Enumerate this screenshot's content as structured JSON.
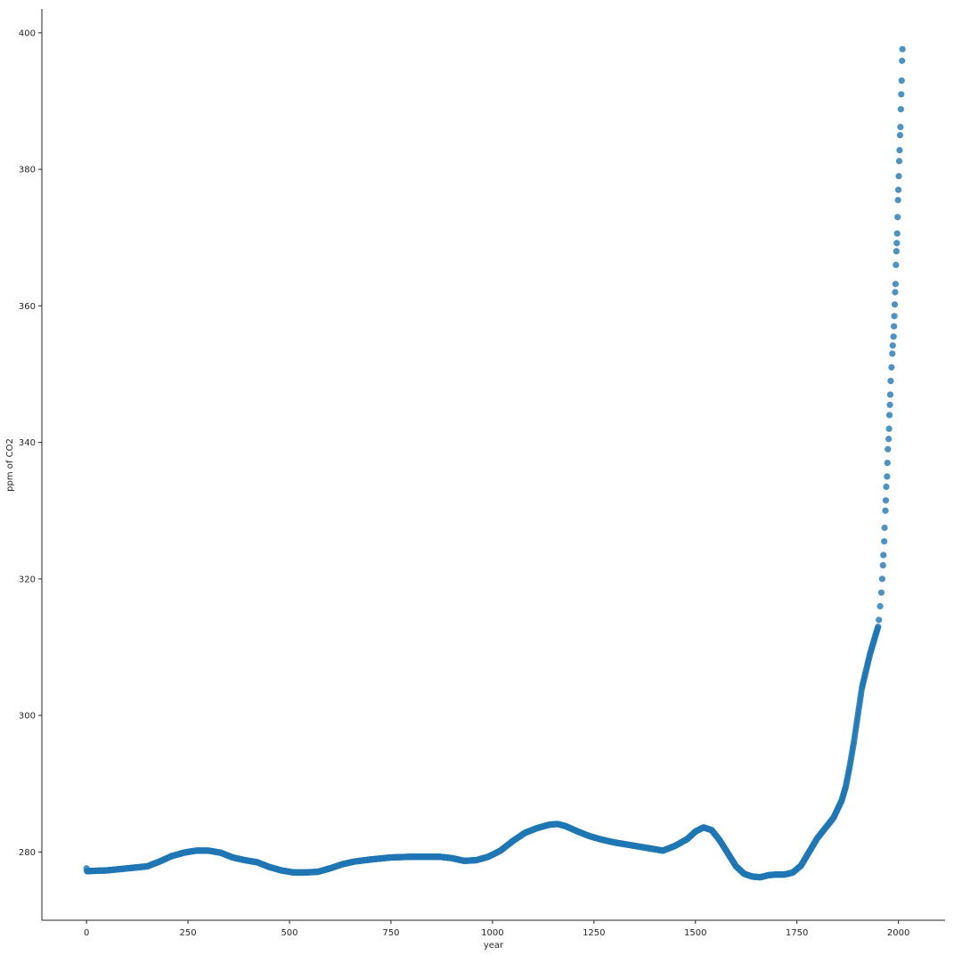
{
  "chart_data": {
    "type": "scatter",
    "xlabel": "year",
    "ylabel": "ppm of CO2",
    "xlim": [
      -110,
      2115
    ],
    "ylim": [
      270,
      403.5
    ],
    "xticks": [
      0,
      250,
      500,
      750,
      1000,
      1250,
      1500,
      1750,
      2000
    ],
    "yticks": [
      280,
      300,
      320,
      340,
      360,
      380,
      400
    ],
    "grid": false,
    "legend": "none",
    "marker_color": "#1f77b4",
    "curve_x": [
      0,
      50,
      100,
      150,
      180,
      210,
      240,
      270,
      300,
      330,
      360,
      390,
      420,
      450,
      480,
      510,
      540,
      570,
      600,
      630,
      660,
      700,
      750,
      800,
      850,
      870,
      900,
      930,
      960,
      990,
      1020,
      1050,
      1080,
      1110,
      1140,
      1160,
      1180,
      1210,
      1240,
      1270,
      1300,
      1330,
      1360,
      1390,
      1420,
      1450,
      1480,
      1500,
      1520,
      1540,
      1560,
      1580,
      1600,
      1620,
      1640,
      1660,
      1680,
      1700,
      1720,
      1740,
      1760,
      1780,
      1800,
      1820,
      1840,
      1860,
      1870,
      1880,
      1890,
      1900,
      1910,
      1920,
      1930,
      1940,
      1950
    ],
    "curve_y": [
      277.2,
      277.3,
      277.6,
      277.9,
      278.6,
      279.4,
      279.9,
      280.2,
      280.2,
      279.9,
      279.2,
      278.8,
      278.5,
      277.8,
      277.3,
      277.0,
      277.0,
      277.1,
      277.6,
      278.2,
      278.6,
      278.9,
      279.2,
      279.3,
      279.3,
      279.3,
      279.1,
      278.7,
      278.8,
      279.3,
      280.2,
      281.6,
      282.8,
      283.5,
      284.0,
      284.1,
      283.8,
      283.0,
      282.3,
      281.8,
      281.4,
      281.1,
      280.8,
      280.5,
      280.2,
      280.9,
      281.9,
      283.0,
      283.6,
      283.2,
      281.7,
      279.8,
      277.9,
      276.8,
      276.4,
      276.3,
      276.6,
      276.7,
      276.7,
      277.0,
      278.0,
      280.0,
      282.0,
      283.5,
      285.0,
      287.5,
      289.5,
      292.5,
      296.0,
      300.0,
      304.0,
      306.5,
      309.0,
      311.0,
      313.0
    ],
    "tail_points": [
      [
        1952,
        314
      ],
      [
        1955,
        316
      ],
      [
        1958,
        318
      ],
      [
        1960,
        320
      ],
      [
        1962,
        322
      ],
      [
        1963,
        323.5
      ],
      [
        1965,
        325.5
      ],
      [
        1966,
        327.5
      ],
      [
        1968,
        330
      ],
      [
        1969,
        331.5
      ],
      [
        1970,
        333.5
      ],
      [
        1972,
        335
      ],
      [
        1973,
        337
      ],
      [
        1974,
        339
      ],
      [
        1976,
        340.5
      ],
      [
        1977,
        342
      ],
      [
        1978,
        344
      ],
      [
        1979,
        345.5
      ],
      [
        1980,
        347
      ],
      [
        1981,
        349
      ],
      [
        1983,
        351
      ],
      [
        1985,
        353
      ],
      [
        1986,
        354.2
      ],
      [
        1988,
        355.5
      ],
      [
        1989,
        357
      ],
      [
        1990,
        358.5
      ],
      [
        1991,
        360.2
      ],
      [
        1992,
        362
      ],
      [
        1993,
        363.2
      ],
      [
        1994,
        366
      ],
      [
        1995,
        368
      ],
      [
        1996,
        369.2
      ],
      [
        1997,
        370.6
      ],
      [
        1998,
        373
      ],
      [
        1999,
        375.5
      ],
      [
        2000,
        377
      ],
      [
        2001,
        379
      ],
      [
        2002,
        381.2
      ],
      [
        2003,
        382.8
      ],
      [
        2004,
        385
      ],
      [
        2005,
        386.2
      ],
      [
        2006,
        388.8
      ],
      [
        2007,
        391
      ],
      [
        2008,
        393
      ],
      [
        2009,
        395.9
      ],
      [
        2010,
        397.6
      ]
    ]
  }
}
